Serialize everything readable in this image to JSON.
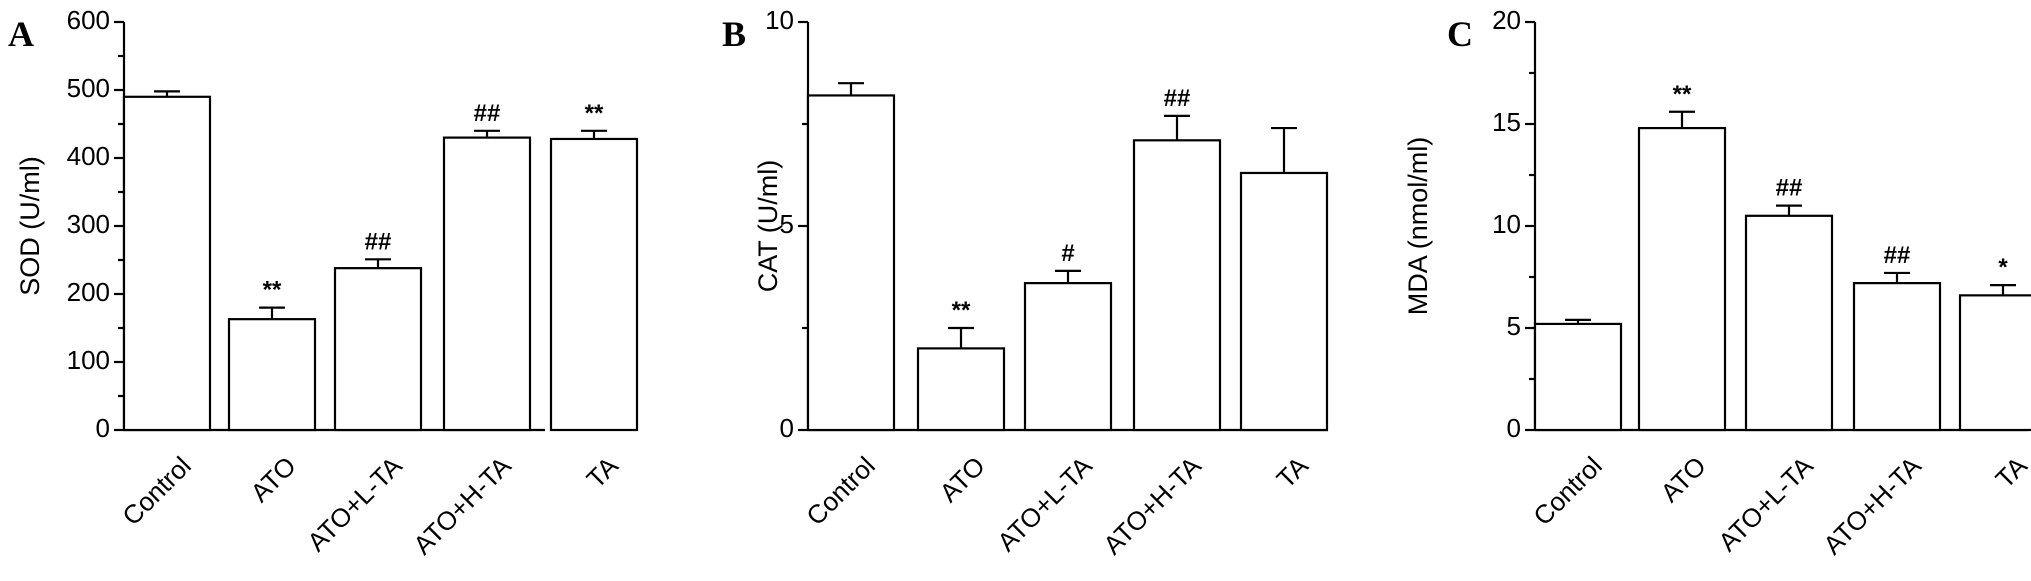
{
  "chart_data": [
    {
      "panel": "A",
      "type": "bar",
      "ylabel": "SOD (U/ml)",
      "ylim": [
        0,
        600
      ],
      "yticks": [
        0,
        100,
        200,
        300,
        400,
        500,
        600
      ],
      "categories": [
        "Control",
        "ATO",
        "ATO+L-TA",
        "ATO+H-TA",
        "TA"
      ],
      "values": [
        490,
        163,
        238,
        430,
        428
      ],
      "errors": [
        8,
        17,
        13,
        10,
        12
      ],
      "significance": [
        "",
        "**",
        "##",
        "##",
        "**"
      ]
    },
    {
      "panel": "B",
      "type": "bar",
      "ylabel": "CAT (U/ml)",
      "ylim": [
        0,
        10
      ],
      "yticks": [
        0,
        5,
        10
      ],
      "categories": [
        "Control",
        "ATO",
        "ATO+L-TA",
        "ATO+H-TA",
        "TA"
      ],
      "values": [
        8.2,
        2.0,
        3.6,
        7.1,
        6.3
      ],
      "errors": [
        0.3,
        0.5,
        0.3,
        0.6,
        1.1
      ],
      "significance": [
        "",
        "**",
        "#",
        "##",
        ""
      ]
    },
    {
      "panel": "C",
      "type": "bar",
      "ylabel": "MDA (nmol/ml)",
      "ylim": [
        0,
        20
      ],
      "yticks": [
        0,
        5,
        10,
        15,
        20
      ],
      "categories": [
        "Control",
        "ATO",
        "ATO+L-TA",
        "ATO+H-TA",
        "TA"
      ],
      "values": [
        5.2,
        14.8,
        10.5,
        7.2,
        6.6
      ],
      "errors": [
        0.2,
        0.8,
        0.5,
        0.5,
        0.5
      ],
      "significance": [
        "",
        "**",
        "##",
        "##",
        "*"
      ]
    }
  ]
}
